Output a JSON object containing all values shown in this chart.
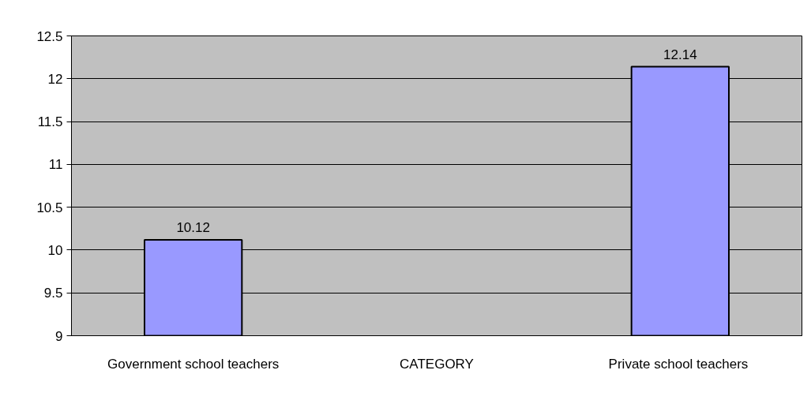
{
  "chart_data": {
    "type": "bar",
    "categories": [
      "Government school teachers",
      "CATEGORY",
      "Private school  teachers"
    ],
    "values": [
      10.12,
      null,
      12.14
    ],
    "color": "#9999ff",
    "ylim": [
      9,
      12.5
    ],
    "yticks": [
      9,
      9.5,
      10,
      10.5,
      11,
      11.5,
      12,
      12.5
    ],
    "grid": "y",
    "data_labels": true
  }
}
